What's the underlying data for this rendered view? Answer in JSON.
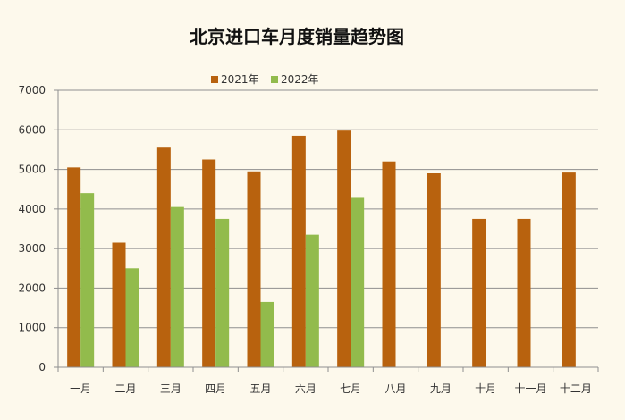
{
  "chart_data": {
    "type": "bar",
    "title": "北京进口车月度销量趋势图",
    "xlabel": "",
    "ylabel": "",
    "categories": [
      "一月",
      "二月",
      "三月",
      "四月",
      "五月",
      "六月",
      "七月",
      "八月",
      "九月",
      "十月",
      "十一月",
      "十二月"
    ],
    "series": [
      {
        "name": "2021年",
        "color": "#b8620e",
        "values": [
          5050,
          3150,
          5550,
          5250,
          4950,
          5850,
          5980,
          5200,
          4900,
          3750,
          3750,
          4920
        ]
      },
      {
        "name": "2022年",
        "color": "#92bb4c",
        "values": [
          4400,
          2500,
          4050,
          3750,
          1650,
          3350,
          4280,
          null,
          null,
          null,
          null,
          null
        ]
      }
    ],
    "ylim": [
      0,
      7000
    ],
    "yticks": [
      0,
      1000,
      2000,
      3000,
      4000,
      5000,
      6000,
      7000
    ],
    "grid": true,
    "legend_position": "top"
  }
}
